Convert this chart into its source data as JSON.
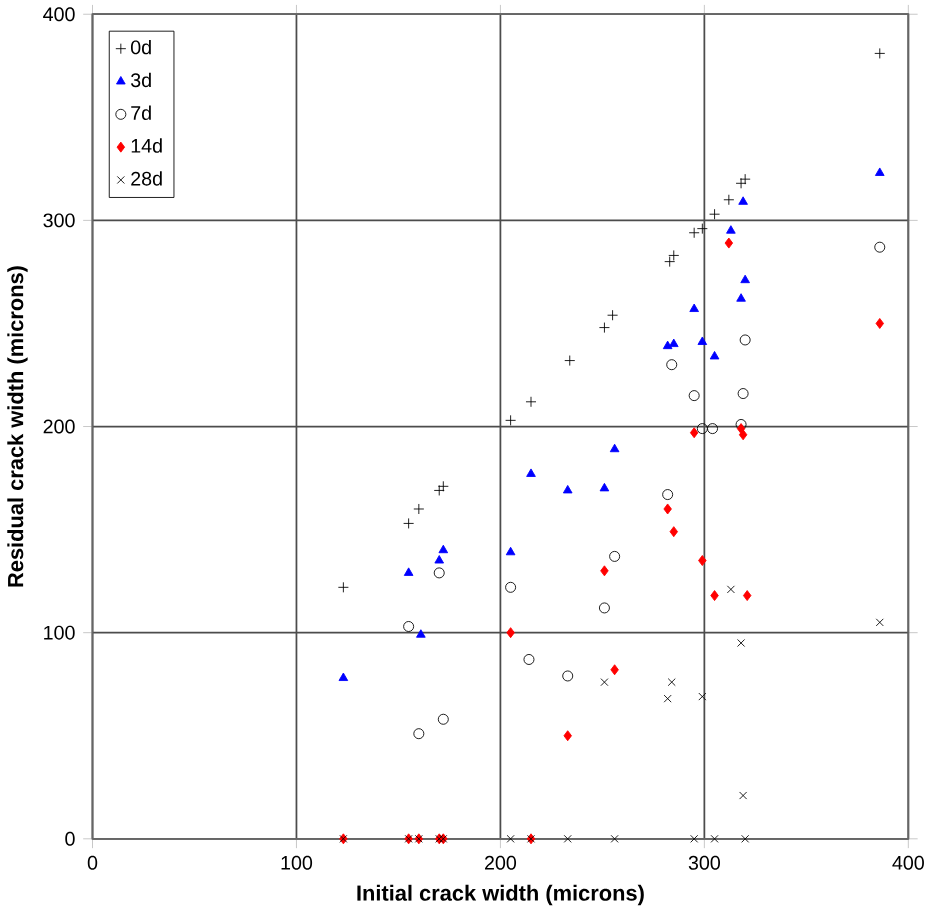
{
  "chart_data": {
    "type": "scatter",
    "xlabel": "Initial crack width (microns)",
    "ylabel": "Residual crack width (microns)",
    "xlim": [
      0,
      400
    ],
    "ylim": [
      0,
      400
    ],
    "xticks": [
      0,
      100,
      200,
      300,
      400
    ],
    "yticks": [
      0,
      100,
      200,
      300,
      400
    ],
    "grid": true,
    "legend": "top left",
    "series": [
      {
        "name": "0d",
        "color": "#000000",
        "marker": "plus",
        "x": [
          123,
          155,
          160,
          170,
          172,
          205,
          215,
          234,
          251,
          255,
          283,
          285,
          295,
          299,
          305,
          312,
          318,
          320,
          386
        ],
        "values": [
          122,
          153,
          160,
          169,
          171,
          203,
          212,
          232,
          248,
          254,
          280,
          283,
          294,
          296,
          303,
          310,
          318,
          320,
          381
        ]
      },
      {
        "name": "3d",
        "color": "#0000ff",
        "marker": "triangle",
        "x": [
          123,
          155,
          161,
          170,
          172,
          205,
          215,
          233,
          251,
          256,
          282,
          285,
          295,
          299,
          305,
          313,
          318,
          320,
          319,
          386
        ],
        "values": [
          78,
          129,
          99,
          135,
          140,
          139,
          177,
          169,
          170,
          189,
          239,
          240,
          257,
          241,
          234,
          295,
          262,
          271,
          309,
          323
        ]
      },
      {
        "name": "7d",
        "color": "#000000",
        "marker": "circle",
        "x": [
          155,
          160,
          170,
          172,
          205,
          214,
          233,
          251,
          256,
          282,
          284,
          295,
          299,
          304,
          318,
          319,
          320,
          386
        ],
        "values": [
          103,
          51,
          129,
          58,
          122,
          87,
          79,
          112,
          137,
          167,
          230,
          215,
          199,
          199,
          201,
          216,
          242,
          287
        ]
      },
      {
        "name": "14d",
        "color": "#ff0000",
        "marker": "diamond",
        "x": [
          123,
          155,
          160,
          170,
          172,
          215,
          205,
          233,
          251,
          256,
          282,
          285,
          295,
          299,
          305,
          312,
          318,
          319,
          321,
          386
        ],
        "values": [
          0,
          0,
          0,
          0,
          0,
          0,
          100,
          50,
          130,
          82,
          160,
          149,
          197,
          135,
          118,
          289,
          199,
          196,
          118,
          250
        ]
      },
      {
        "name": "28d",
        "color": "#000000",
        "marker": "cross",
        "x": [
          123,
          155,
          160,
          170,
          172,
          205,
          215,
          233,
          256,
          295,
          305,
          320,
          251,
          284,
          282,
          299,
          313,
          318,
          319,
          386
        ],
        "values": [
          0,
          0,
          0,
          0,
          0,
          0,
          0,
          0,
          0,
          0,
          0,
          0,
          76,
          76,
          68,
          69,
          121,
          95,
          21,
          105
        ]
      }
    ]
  }
}
